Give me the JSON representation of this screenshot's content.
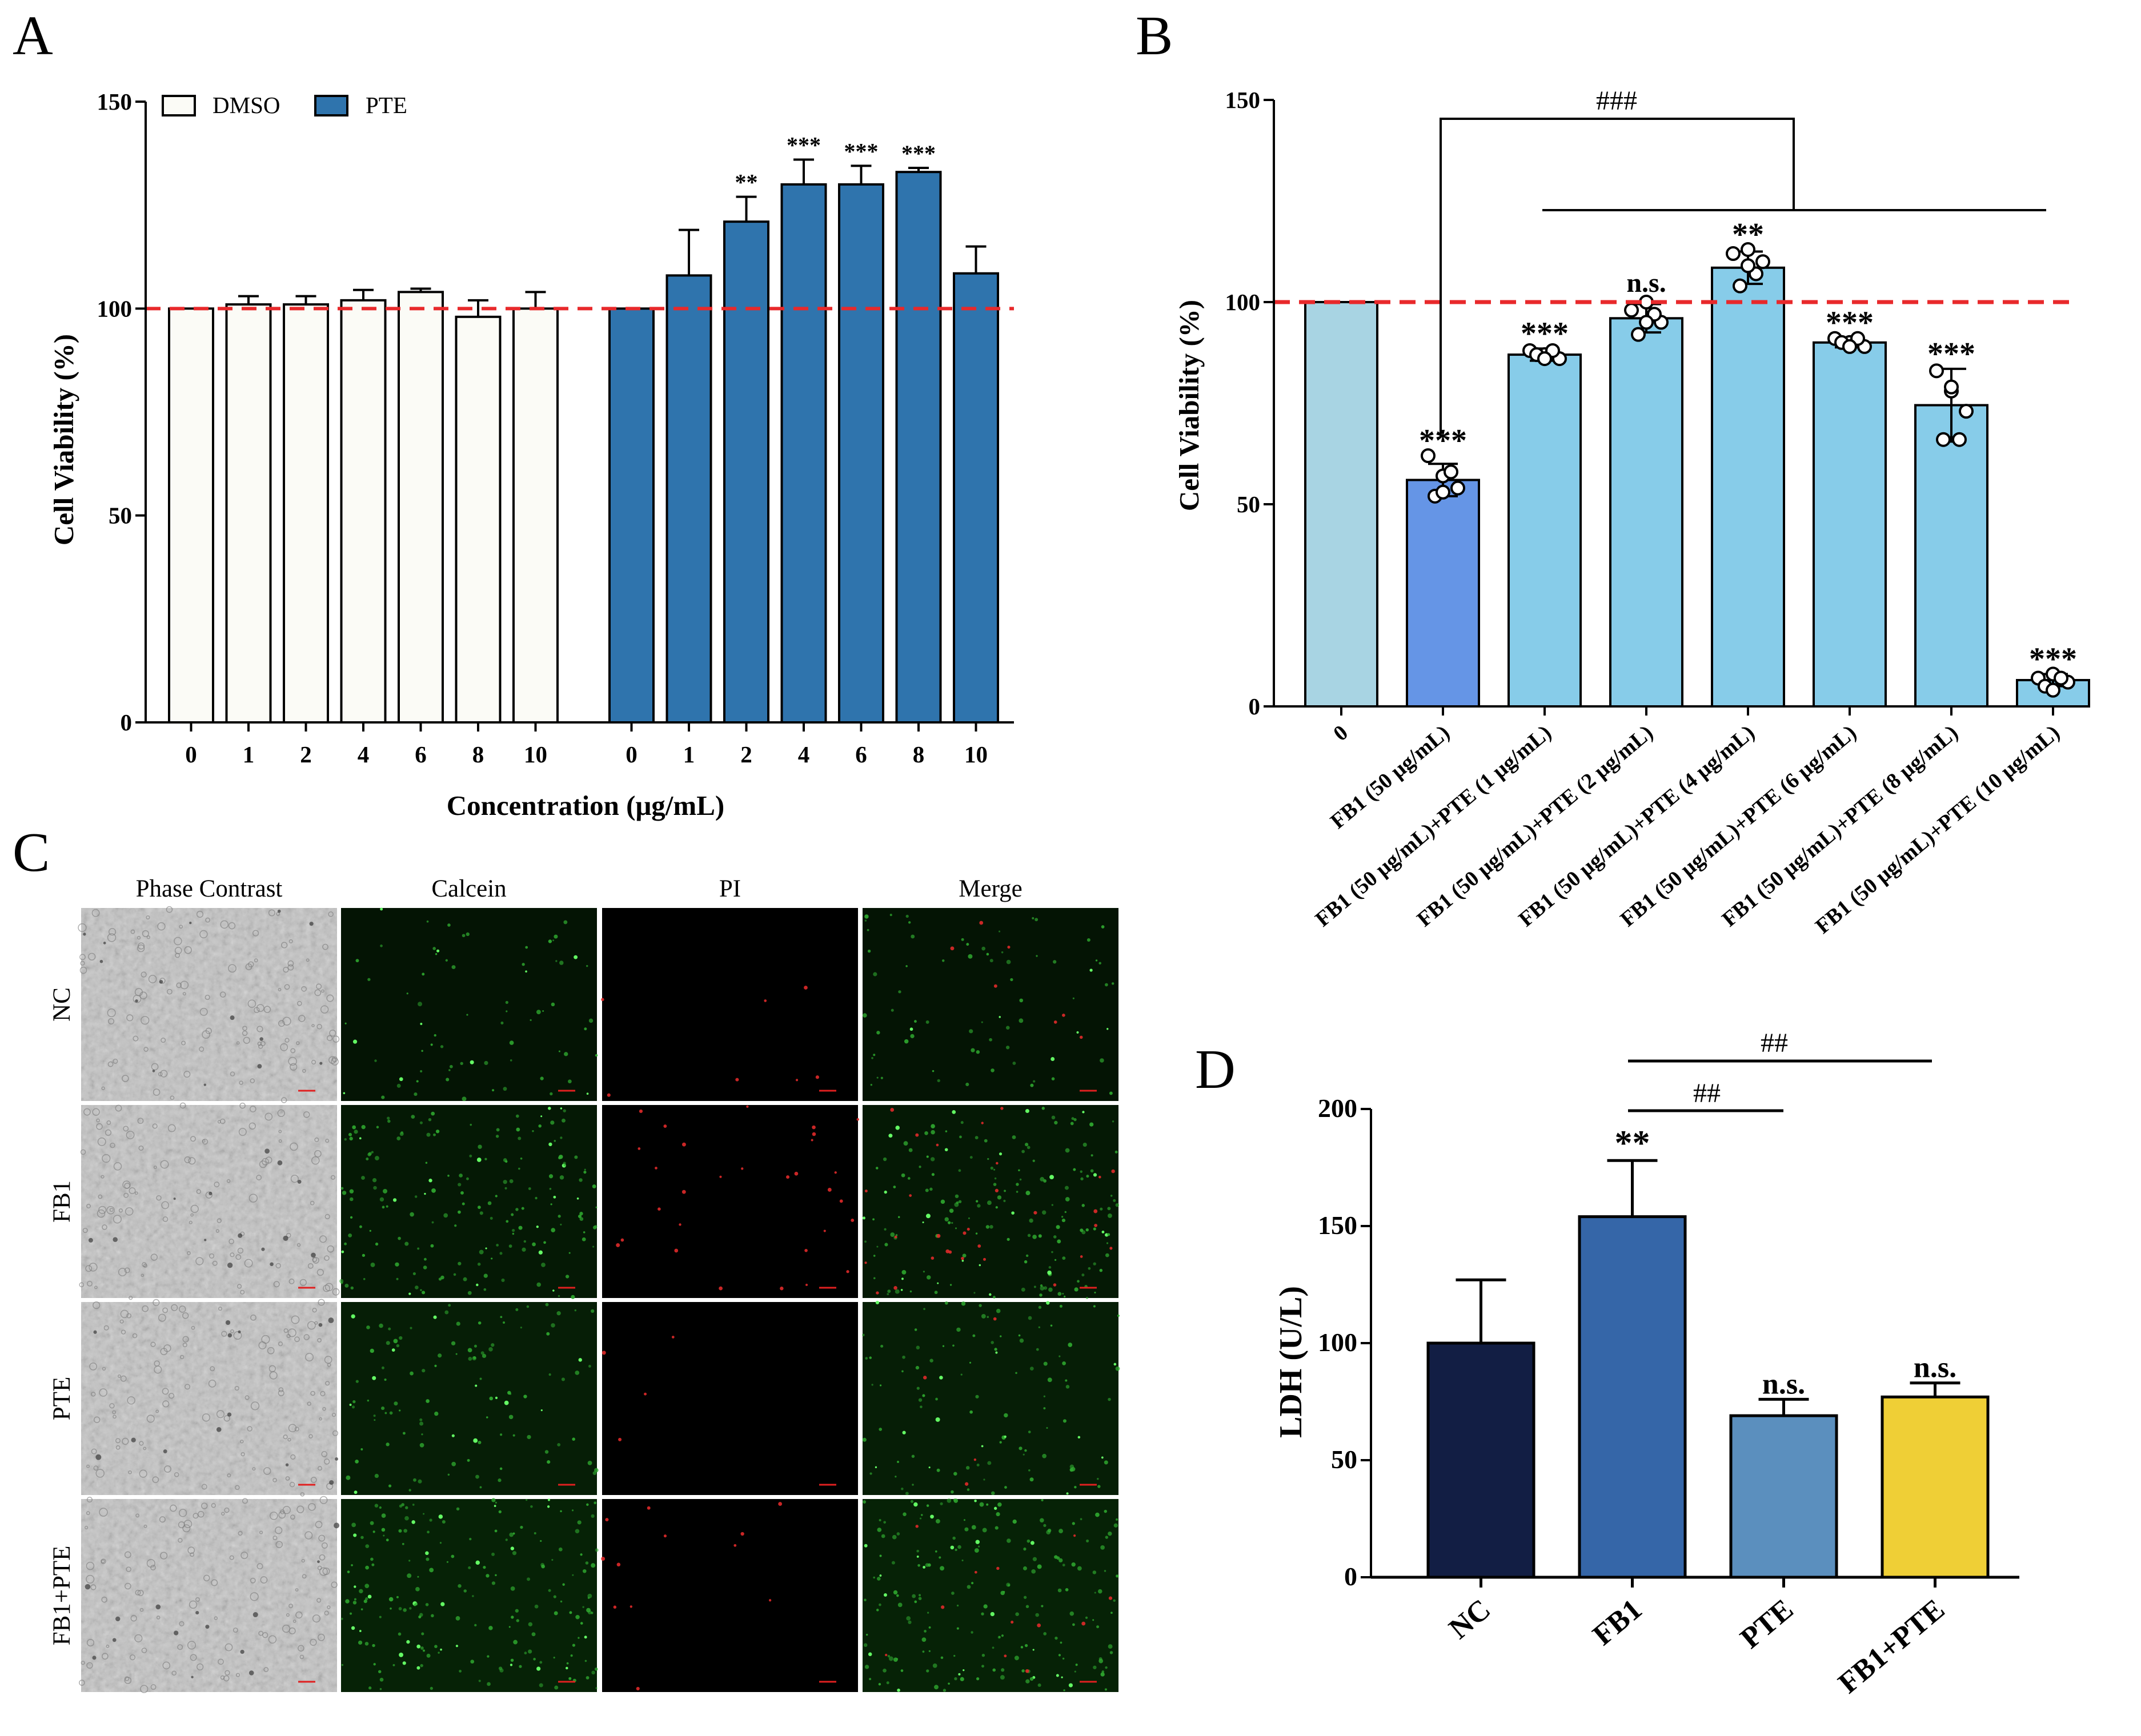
{
  "panels": {
    "A": "A",
    "B": "B",
    "C": "C",
    "D": "D"
  },
  "colors": {
    "dmso": "#fbfbf6",
    "pte": "#2f74ad",
    "ref_line": "#e8292b",
    "b_control": "#a8d4e3",
    "b_fb1": "#6595e6",
    "b_combo": "#87cce9",
    "d_nc": "#121e44",
    "d_fb1": "#3566a8",
    "d_pte": "#5b8fbe",
    "d_combo": "#efcf36"
  },
  "chart_data": [
    {
      "id": "A",
      "type": "bar",
      "title": "",
      "xlabel": "Concentration (μg/mL)",
      "ylabel": "Cell Viability (%)",
      "ylim": [
        0,
        150
      ],
      "yticks": [
        "0",
        "50",
        "100",
        "150"
      ],
      "reference_line": 100,
      "legend": [
        "DMSO",
        "PTE"
      ],
      "legend_position": "top-left",
      "groups": [
        {
          "name": "DMSO",
          "categories": [
            "0",
            "1",
            "2",
            "4",
            "6",
            "8",
            "10"
          ],
          "values": [
            100,
            101,
            101,
            102,
            104,
            98,
            100
          ],
          "errors": [
            0,
            2,
            2,
            2.5,
            0.8,
            4,
            4
          ],
          "annotations": [
            "",
            "",
            "",
            "",
            "",
            "",
            ""
          ]
        },
        {
          "name": "PTE",
          "categories": [
            "0",
            "1",
            "2",
            "4",
            "6",
            "8",
            "10"
          ],
          "values": [
            100,
            108,
            121,
            130,
            130,
            133,
            108.5
          ],
          "errors": [
            0,
            11,
            6,
            6,
            4.5,
            1,
            6.5
          ],
          "annotations": [
            "",
            "",
            "**",
            "***",
            "***",
            "***",
            ""
          ]
        }
      ]
    },
    {
      "id": "B",
      "type": "bar",
      "title": "",
      "xlabel": "",
      "ylabel": "Cell Viability (%)",
      "ylim": [
        0,
        150
      ],
      "yticks": [
        "0",
        "50",
        "100",
        "150"
      ],
      "reference_line": 100,
      "categories": [
        "0",
        "FB1 (50 μg/mL)",
        "FB1 (50 μg/mL)+PTE (1 μg/mL)",
        "FB1 (50 μg/mL)+PTE (2 μg/mL)",
        "FB1 (50 μg/mL)+PTE (4 μg/mL)",
        "FB1 (50 μg/mL)+PTE (6 μg/mL)",
        "FB1 (50 μg/mL)+PTE (8 μg/mL)",
        "FB1 (50 μg/mL)+PTE (10 μg/mL)"
      ],
      "values": [
        100,
        56,
        87,
        96,
        108.5,
        90,
        74.5,
        6.5
      ],
      "errors": [
        0,
        4,
        1.5,
        3.5,
        4,
        1.2,
        9,
        1.5
      ],
      "points": [
        [],
        [
          62,
          57,
          54,
          52,
          58,
          53
        ],
        [
          88,
          87,
          86,
          87,
          88,
          86
        ],
        [
          98,
          100,
          95,
          92,
          97,
          95
        ],
        [
          112,
          113,
          110,
          104,
          107,
          109
        ],
        [
          91,
          90,
          89,
          90,
          91,
          89
        ],
        [
          83,
          78,
          73,
          66,
          66,
          79
        ],
        [
          7,
          8,
          6,
          5,
          7,
          4
        ]
      ],
      "annotations": [
        "",
        "***",
        "***",
        "n.s.",
        "**",
        "***",
        "***",
        "***"
      ],
      "brackets": [
        {
          "label": "###",
          "from": "FB1 (50 μg/mL)",
          "to": "FB1 (50 μg/mL)+PTE (1 μg/mL) … FB1 (50 μg/mL)+PTE (10 μg/mL)"
        }
      ]
    },
    {
      "id": "D",
      "type": "bar",
      "title": "",
      "xlabel": "",
      "ylabel": "LDH (U/L)",
      "ylim": [
        0,
        200
      ],
      "yticks": [
        "0",
        "50",
        "100",
        "150",
        "200"
      ],
      "categories": [
        "NC",
        "FB1",
        "PTE",
        "FB1+PTE"
      ],
      "values": [
        100,
        154,
        69,
        77
      ],
      "errors": [
        27,
        24,
        7,
        6
      ],
      "annotations": [
        "",
        "**",
        "n.s.",
        "n.s."
      ],
      "brackets": [
        {
          "label": "##",
          "from": "FB1",
          "to": "PTE"
        },
        {
          "label": "##",
          "from": "FB1",
          "to": "FB1+PTE"
        }
      ]
    }
  ],
  "panel_c": {
    "column_labels": [
      "Phase Contrast",
      "Calcein",
      "PI",
      "Merge"
    ],
    "row_labels": [
      "NC",
      "FB1",
      "PTE",
      "FB1+PTE"
    ]
  }
}
